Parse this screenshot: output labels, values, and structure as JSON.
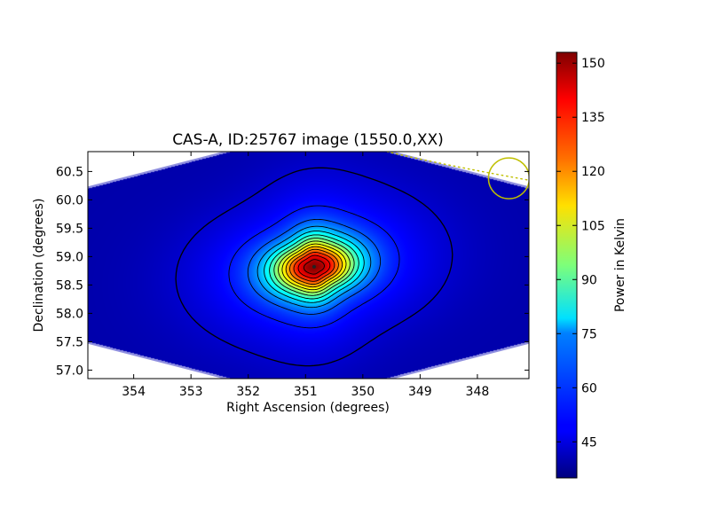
{
  "chart_data": {
    "type": "heatmap",
    "title": "CAS-A, ID:25767 image (1550.0,XX)",
    "xlabel": "Right Ascension (degrees)",
    "ylabel": "Declination (degrees)",
    "x_axis_inverted": true,
    "xlim": [
      354.8,
      347.1
    ],
    "ylim": [
      56.85,
      60.85
    ],
    "x_ticks": [
      {
        "value": 354,
        "label": "354"
      },
      {
        "value": 353,
        "label": "353"
      },
      {
        "value": 352,
        "label": "352"
      },
      {
        "value": 351,
        "label": "351"
      },
      {
        "value": 350,
        "label": "350"
      },
      {
        "value": 349,
        "label": "349"
      },
      {
        "value": 348,
        "label": "348"
      }
    ],
    "y_ticks": [
      {
        "value": 57.0,
        "label": "57.0"
      },
      {
        "value": 57.5,
        "label": "57.5"
      },
      {
        "value": 58.0,
        "label": "58.0"
      },
      {
        "value": 58.5,
        "label": "58.5"
      },
      {
        "value": 59.0,
        "label": "59.0"
      },
      {
        "value": 59.5,
        "label": "59.5"
      },
      {
        "value": 60.0,
        "label": "60.0"
      },
      {
        "value": 60.5,
        "label": "60.5"
      }
    ],
    "source": {
      "ra": 350.85,
      "dec": 58.82,
      "peak_kelvin": 152
    },
    "background_kelvin": 40,
    "colormap": "jet",
    "colorbar": {
      "label": "Power in Kelvin",
      "range": [
        35,
        153
      ],
      "ticks": [
        {
          "value": 45,
          "label": "45"
        },
        {
          "value": 60,
          "label": "60"
        },
        {
          "value": 75,
          "label": "75"
        },
        {
          "value": 90,
          "label": "90"
        },
        {
          "value": 105,
          "label": "105"
        },
        {
          "value": 120,
          "label": "120"
        },
        {
          "value": 135,
          "label": "135"
        },
        {
          "value": 150,
          "label": "150"
        }
      ]
    },
    "contour_count": 14,
    "beam_circle": {
      "ra": 347.45,
      "dec": 60.38
    },
    "beam_color": "#bfbf00",
    "grid": false,
    "legend": "none"
  }
}
